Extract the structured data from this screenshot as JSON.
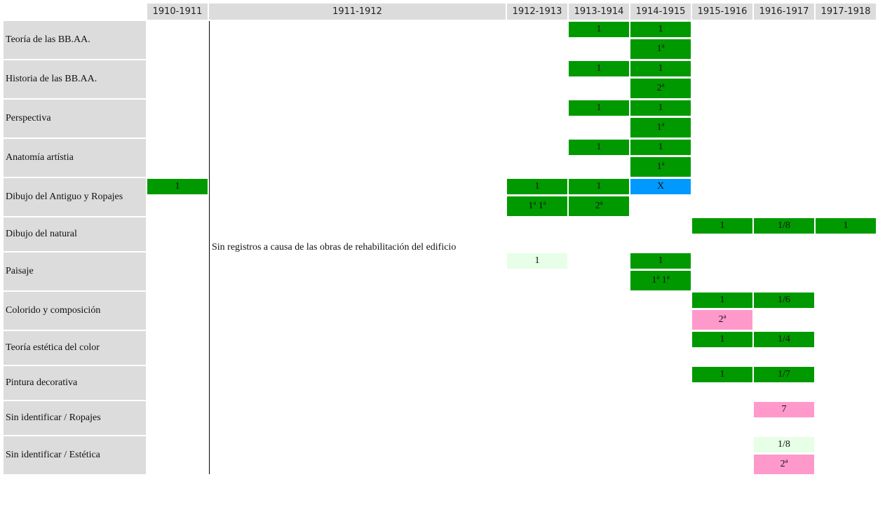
{
  "table": {
    "columns": [
      "1910-1911",
      "1911-1912",
      "1912-1913",
      "1913-1914",
      "1914-1915",
      "1915-1916",
      "1916-1917",
      "1917-1918"
    ],
    "note": "Sin registros a causa de las obras de rehabilitación del edificio",
    "rows": [
      {
        "label": "Teoría de las BB.AA.",
        "lines": [
          [
            null,
            null,
            null,
            {
              "text": "1",
              "color": "#009900"
            },
            {
              "text": "1",
              "color": "#009900"
            },
            null,
            null,
            null
          ],
          [
            null,
            null,
            null,
            null,
            {
              "text": "1ª",
              "color": "#009900"
            },
            null,
            null,
            null
          ]
        ]
      },
      {
        "label": "Historia de las BB.AA.",
        "lines": [
          [
            null,
            null,
            null,
            {
              "text": "1",
              "color": "#009900"
            },
            {
              "text": "1",
              "color": "#009900"
            },
            null,
            null,
            null
          ],
          [
            null,
            null,
            null,
            null,
            {
              "text": "2ª",
              "color": "#009900"
            },
            null,
            null,
            null
          ]
        ]
      },
      {
        "label": "Perspectiva",
        "lines": [
          [
            null,
            null,
            null,
            {
              "text": "1",
              "color": "#009900"
            },
            {
              "text": "1",
              "color": "#009900"
            },
            null,
            null,
            null
          ],
          [
            null,
            null,
            null,
            null,
            {
              "text": "1ª",
              "color": "#009900"
            },
            null,
            null,
            null
          ]
        ]
      },
      {
        "label": "Anatomía artístia",
        "lines": [
          [
            null,
            null,
            null,
            {
              "text": "1",
              "color": "#009900"
            },
            {
              "text": "1",
              "color": "#009900"
            },
            null,
            null,
            null
          ],
          [
            null,
            null,
            null,
            null,
            {
              "text": "1ª",
              "color": "#009900"
            },
            null,
            null,
            null
          ]
        ]
      },
      {
        "label": "Dibujo del Antiguo y Ropajes",
        "lines": [
          [
            {
              "text": "1",
              "color": "#009900"
            },
            null,
            {
              "text": "1",
              "color": "#009900"
            },
            {
              "text": "1",
              "color": "#009900"
            },
            {
              "text": "X",
              "color": "#0099ff"
            },
            null,
            null,
            null
          ],
          [
            null,
            null,
            {
              "text": "1ª 1ª",
              "color": "#009900"
            },
            {
              "text": "2ª",
              "color": "#009900"
            },
            null,
            null,
            null,
            null
          ]
        ]
      },
      {
        "label": "Dibujo del natural",
        "lines": [
          [
            null,
            null,
            null,
            null,
            null,
            {
              "text": "1",
              "color": "#009900"
            },
            {
              "text": "1/8",
              "color": "#009900"
            },
            {
              "text": "1",
              "color": "#009900"
            }
          ]
        ]
      },
      {
        "label": "Paisaje",
        "lines": [
          [
            null,
            null,
            {
              "text": "1",
              "color": "#e6ffe6"
            },
            null,
            {
              "text": "1",
              "color": "#009900"
            },
            null,
            null,
            null
          ],
          [
            null,
            null,
            null,
            null,
            {
              "text": "1ª 1ª",
              "color": "#009900"
            },
            null,
            null,
            null
          ]
        ]
      },
      {
        "label": "Colorido y composición",
        "lines": [
          [
            null,
            null,
            null,
            null,
            null,
            {
              "text": "1",
              "color": "#009900"
            },
            {
              "text": "1/6",
              "color": "#009900"
            },
            null
          ],
          [
            null,
            null,
            null,
            null,
            null,
            {
              "text": "2ª",
              "color": "#ff99cc"
            },
            null,
            null
          ]
        ]
      },
      {
        "label": "Teoría estética del color",
        "lines": [
          [
            null,
            null,
            null,
            null,
            null,
            {
              "text": "1",
              "color": "#009900"
            },
            {
              "text": "1/4",
              "color": "#009900"
            },
            null
          ]
        ]
      },
      {
        "label": "Pintura decorativa",
        "lines": [
          [
            null,
            null,
            null,
            null,
            null,
            {
              "text": "1",
              "color": "#009900"
            },
            {
              "text": "1/7",
              "color": "#009900"
            },
            null
          ]
        ]
      },
      {
        "label": "Sin identificar / Ropajes",
        "lines": [
          [
            null,
            null,
            null,
            null,
            null,
            null,
            {
              "text": "7",
              "color": "#ff99cc"
            },
            null
          ]
        ]
      },
      {
        "label": "Sin identificar / Estética",
        "lines": [
          [
            null,
            null,
            null,
            null,
            null,
            null,
            {
              "text": "1/8",
              "color": "#e6ffe6"
            },
            null
          ],
          [
            null,
            null,
            null,
            null,
            null,
            null,
            {
              "text": "2ª",
              "color": "#ff99cc"
            },
            null
          ]
        ]
      }
    ]
  }
}
